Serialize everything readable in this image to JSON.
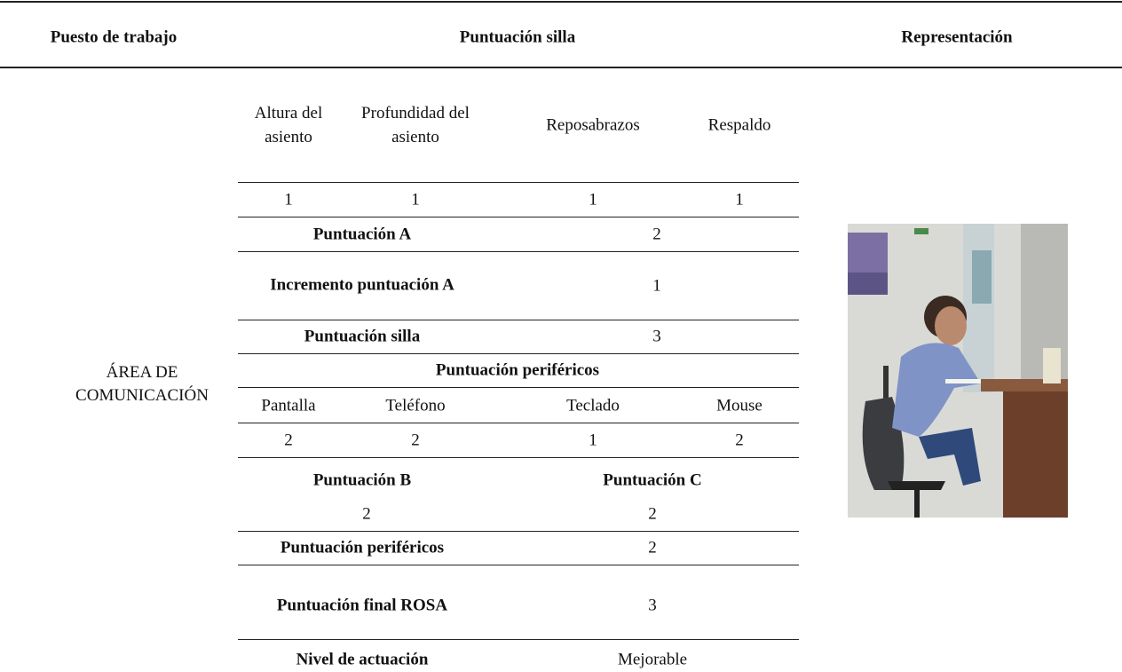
{
  "header": {
    "workstation": "Puesto de trabajo",
    "chair_score": "Puntuación silla",
    "representation": "Representación"
  },
  "workstation": "ÁREA DE COMUNICACIÓN",
  "chair": {
    "columns": [
      "Altura del asiento",
      "Profundidad del asiento",
      "Reposabrazos",
      "Respaldo"
    ],
    "values": [
      1,
      1,
      1,
      1
    ]
  },
  "score_a": {
    "label": "Puntuación A",
    "value": 2
  },
  "score_a_increment": {
    "label": "Incremento puntuación A",
    "value": 1
  },
  "chair_score": {
    "label": "Puntuación silla",
    "value": 3
  },
  "peripherals": {
    "title": "Puntuación periféricos",
    "columns": [
      "Pantalla",
      "Teléfono",
      "Teclado",
      "Mouse"
    ],
    "values": [
      2,
      2,
      1,
      2
    ]
  },
  "score_b": {
    "label": "Puntuación B",
    "value": 2
  },
  "score_c": {
    "label": "Puntuación C",
    "value": 2
  },
  "peripherals_score": {
    "label": "Puntuación periféricos",
    "value": 2
  },
  "final_score": {
    "label": "Puntuación final ROSA",
    "value": 3
  },
  "action_level": {
    "label": "Nivel de actuación",
    "value": "Mejorable"
  }
}
